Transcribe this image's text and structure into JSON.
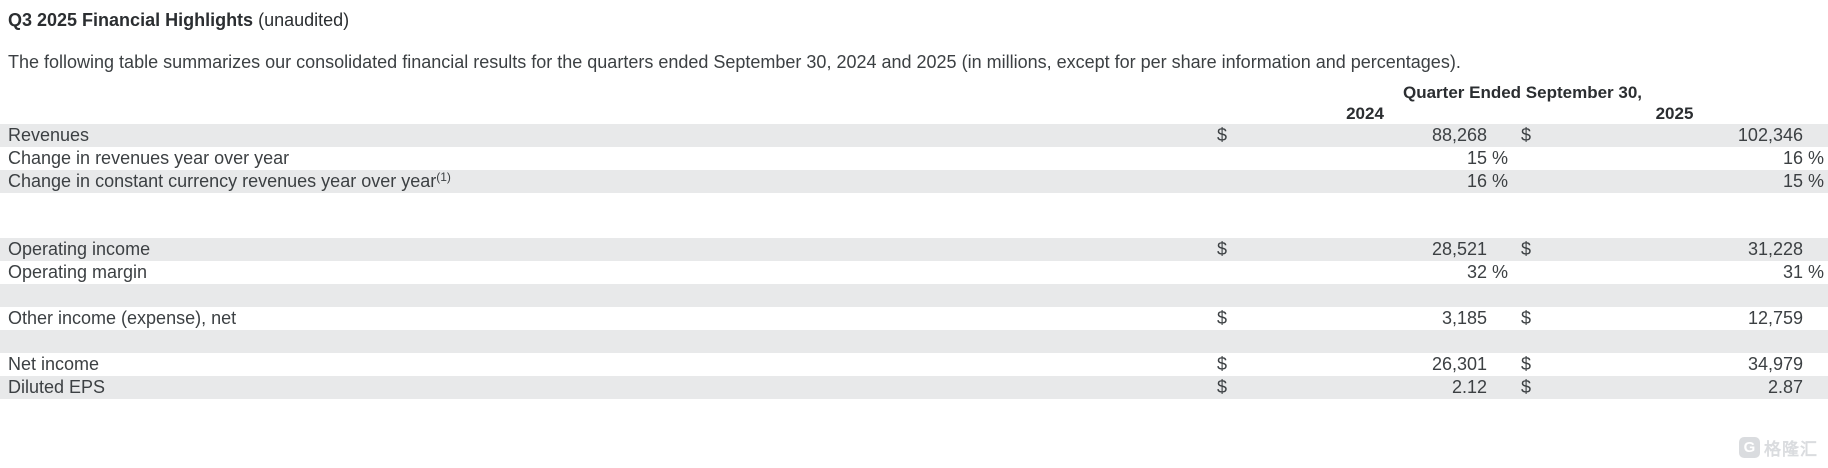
{
  "title": {
    "main": "Q3 2025 Financial Highlights",
    "suffix": " (unaudited)"
  },
  "intro": "The following table summarizes our consolidated financial results for the quarters ended September 30, 2024 and 2025 (in millions, except for per share information and percentages).",
  "table": {
    "group_header": "Quarter Ended September 30,",
    "year_2024": "2024",
    "year_2025": "2025",
    "rows": [
      {
        "type": "data",
        "shaded": true,
        "label": "Revenues",
        "sup": "",
        "cur2024": "$",
        "val2024": "88,268",
        "pct2024": "",
        "cur2025": "$",
        "val2025": "102,346",
        "pct2025": ""
      },
      {
        "type": "data",
        "shaded": false,
        "label": "Change in revenues year over year",
        "sup": "",
        "cur2024": "",
        "val2024": "15",
        "pct2024": "%",
        "cur2025": "",
        "val2025": "16",
        "pct2025": "%"
      },
      {
        "type": "data",
        "shaded": true,
        "label": "Change in constant currency revenues year over year",
        "sup": "(1)",
        "cur2024": "",
        "val2024": "16",
        "pct2024": "%",
        "cur2025": "",
        "val2025": "15",
        "pct2025": "%"
      },
      {
        "type": "spacer",
        "shaded": false,
        "height": "tall"
      },
      {
        "type": "data",
        "shaded": true,
        "label": "Operating income",
        "sup": "",
        "cur2024": "$",
        "val2024": "28,521",
        "pct2024": "",
        "cur2025": "$",
        "val2025": "31,228",
        "pct2025": ""
      },
      {
        "type": "data",
        "shaded": false,
        "label": "Operating margin",
        "sup": "",
        "cur2024": "",
        "val2024": "32",
        "pct2024": "%",
        "cur2025": "",
        "val2025": "31",
        "pct2025": "%"
      },
      {
        "type": "spacer",
        "shaded": true,
        "height": "normal"
      },
      {
        "type": "data",
        "shaded": false,
        "label": "Other income (expense), net",
        "sup": "",
        "cur2024": "$",
        "val2024": "3,185",
        "pct2024": "",
        "cur2025": "$",
        "val2025": "12,759",
        "pct2025": ""
      },
      {
        "type": "spacer",
        "shaded": true,
        "height": "normal"
      },
      {
        "type": "data",
        "shaded": false,
        "label": "Net income",
        "sup": "",
        "cur2024": "$",
        "val2024": "26,301",
        "pct2024": "",
        "cur2025": "$",
        "val2025": "34,979",
        "pct2025": ""
      },
      {
        "type": "data",
        "shaded": true,
        "label": "Diluted EPS",
        "sup": "",
        "cur2024": "$",
        "val2024": "2.12",
        "pct2024": "",
        "cur2025": "$",
        "val2025": "2.87",
        "pct2025": ""
      }
    ]
  },
  "watermark": {
    "badge_letter": "G",
    "text": "格隆汇"
  },
  "colors": {
    "band_gray": "#e8e9ea",
    "text": "#3c4043",
    "watermark_gray": "#d7d9dc"
  }
}
